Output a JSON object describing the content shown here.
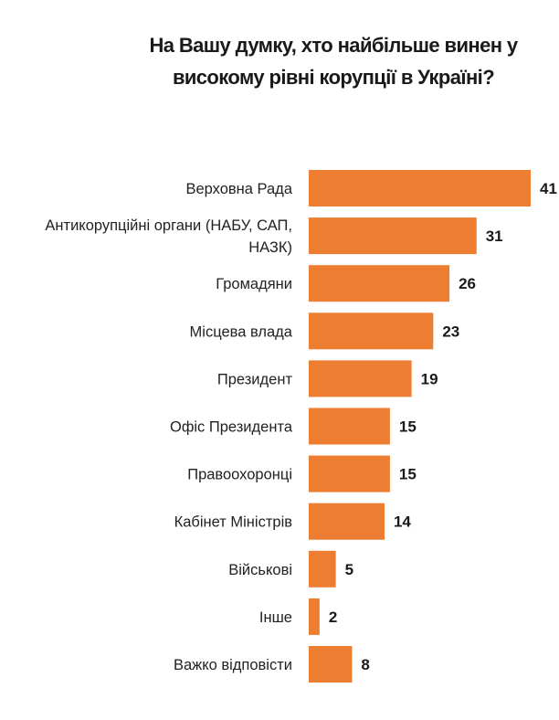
{
  "chart_data": {
    "type": "bar",
    "orientation": "horizontal",
    "title_lines": [
      "На Вашу думку, хто найбільше винен у",
      "високому рівні корупції в Україні?"
    ],
    "categories": [
      [
        "Верховна Рада"
      ],
      [
        "Антикорупційні органи (НАБУ, САП,",
        "НАЗК)"
      ],
      [
        "Громадяни"
      ],
      [
        "Місцева влада"
      ],
      [
        "Президент"
      ],
      [
        "Офіс Президента"
      ],
      [
        "Правоохоронці"
      ],
      [
        "Кабінет Міністрів"
      ],
      [
        "Військові"
      ],
      [
        "Інше"
      ],
      [
        "Важко відповісти"
      ]
    ],
    "values": [
      41,
      31,
      26,
      23,
      19,
      15,
      15,
      14,
      5,
      2,
      8
    ],
    "xlim": [
      0,
      41
    ],
    "grid": false,
    "bar_color": "#ED7D31"
  }
}
